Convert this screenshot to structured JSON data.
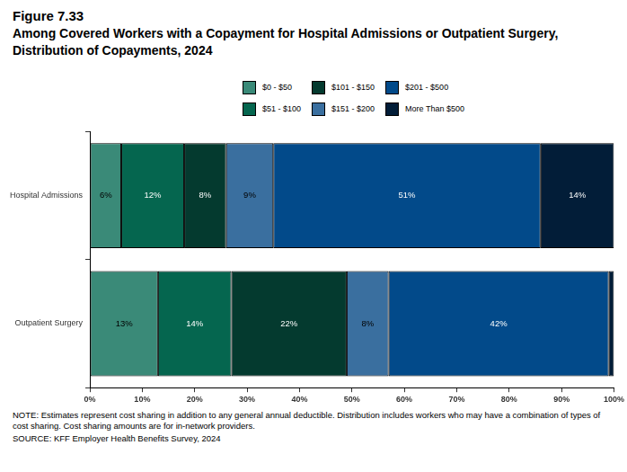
{
  "chart_data": {
    "type": "bar",
    "title": "Figure 7.33",
    "subtitle": "Among Covered Workers with a Copayment for Hospital Admissions or Outpatient Surgery, Distribution of Copayments, 2024",
    "note": "NOTE: Estimates represent cost sharing in addition to any general annual deductible. Distribution includes workers who may have a combination of types of cost sharing. Cost sharing amounts are for in-network providers.",
    "source": "SOURCE: KFF Employer Health Benefits Survey, 2024",
    "orientation": "horizontal",
    "stacked": true,
    "data_labels": true,
    "legend": "top",
    "grid": false,
    "categories": [
      "Hospital Admissions",
      "Outpatient Surgery"
    ],
    "series": [
      {
        "name": "$0 - $50",
        "color": "#3a8a78",
        "values": [
          6,
          13
        ],
        "value_labels": [
          "6%",
          "13%"
        ]
      },
      {
        "name": "$51 - $100",
        "color": "#05664f",
        "values": [
          12,
          14
        ],
        "value_labels": [
          "12%",
          "14%"
        ]
      },
      {
        "name": "$101 - $150",
        "color": "#043a2f",
        "values": [
          8,
          22
        ],
        "value_labels": [
          "8%",
          "22%"
        ]
      },
      {
        "name": "$151 - $200",
        "color": "#3a6f9f",
        "values": [
          9,
          8
        ],
        "value_labels": [
          "9%",
          "8%"
        ]
      },
      {
        "name": "$201 - $500",
        "color": "#024a8a",
        "values": [
          51,
          42
        ],
        "value_labels": [
          "51%",
          "42%"
        ]
      },
      {
        "name": "More Than $500",
        "color": "#021d38",
        "values": [
          14,
          1
        ],
        "value_labels": [
          "14%",
          null
        ]
      }
    ],
    "xlim": [
      0,
      100
    ],
    "xticks": [
      {
        "value": 0,
        "label": "0%"
      },
      {
        "value": 10,
        "label": "10%"
      },
      {
        "value": 20,
        "label": "20%"
      },
      {
        "value": 30,
        "label": "30%"
      },
      {
        "value": 40,
        "label": "40%"
      },
      {
        "value": 50,
        "label": "50%"
      },
      {
        "value": 60,
        "label": "60%"
      },
      {
        "value": 70,
        "label": "70%"
      },
      {
        "value": 80,
        "label": "80%"
      },
      {
        "value": 90,
        "label": "90%"
      },
      {
        "value": 100,
        "label": "100%"
      }
    ]
  }
}
